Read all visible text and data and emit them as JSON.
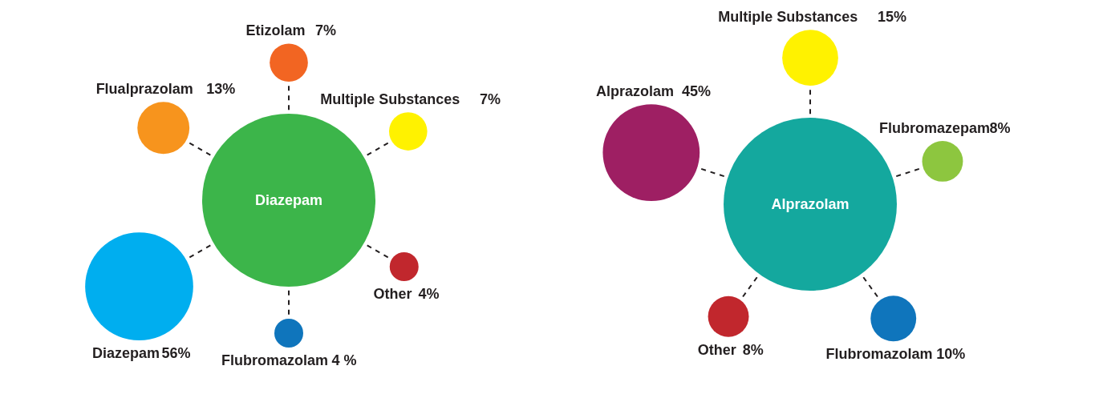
{
  "chart_data": [
    {
      "type": "other",
      "title": "Diazepam",
      "color": "#3cb54a",
      "categories": [
        "Etizolam",
        "Multiple Substances",
        "Other",
        "Flubromazolam",
        "Diazepam",
        "Flualprazolam"
      ],
      "values": [
        7,
        7,
        4,
        4,
        56,
        13
      ],
      "value_labels": [
        "7%",
        "7%",
        "4%",
        "4 %",
        "56%",
        "13%"
      ],
      "colors": [
        "#f26522",
        "#fff200",
        "#c1272d",
        "#0f75bc",
        "#00aeef",
        "#f7941d"
      ]
    },
    {
      "type": "other",
      "title": "Alprazolam",
      "color": "#14a89e",
      "categories": [
        "Multiple Substances",
        "Flubromazepam",
        "Flubromazolam",
        "Other",
        "Alprazolam"
      ],
      "values": [
        15,
        8,
        10,
        8,
        45
      ],
      "value_labels": [
        "15%",
        "8%",
        "10%",
        "8%",
        "45%"
      ],
      "colors": [
        "#fff200",
        "#8dc63f",
        "#0f75bc",
        "#c1272d",
        "#9e1f63"
      ]
    }
  ]
}
